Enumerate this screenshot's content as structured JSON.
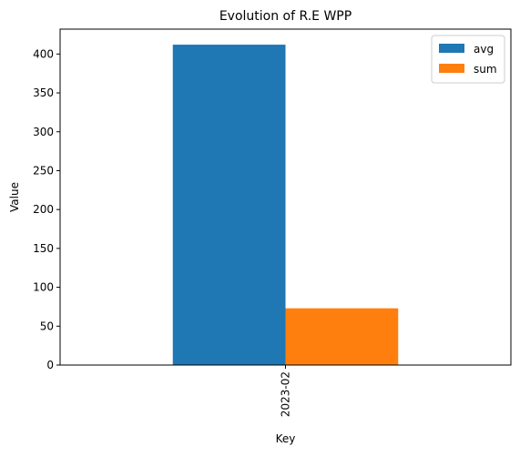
{
  "chart_data": {
    "type": "bar",
    "title": "Evolution of R.E WPP",
    "xlabel": "Key",
    "ylabel": "Value",
    "categories": [
      "2023-02"
    ],
    "series": [
      {
        "name": "avg",
        "values": [
          412
        ],
        "color": "#1f77b4"
      },
      {
        "name": "sum",
        "values": [
          73
        ],
        "color": "#ff7f0e"
      }
    ],
    "ylim": [
      0,
      432
    ],
    "yticks": [
      0,
      50,
      100,
      150,
      200,
      250,
      300,
      350,
      400
    ],
    "grid": false,
    "legend_position": "top-right",
    "x_tick_rotation": "vertical"
  }
}
